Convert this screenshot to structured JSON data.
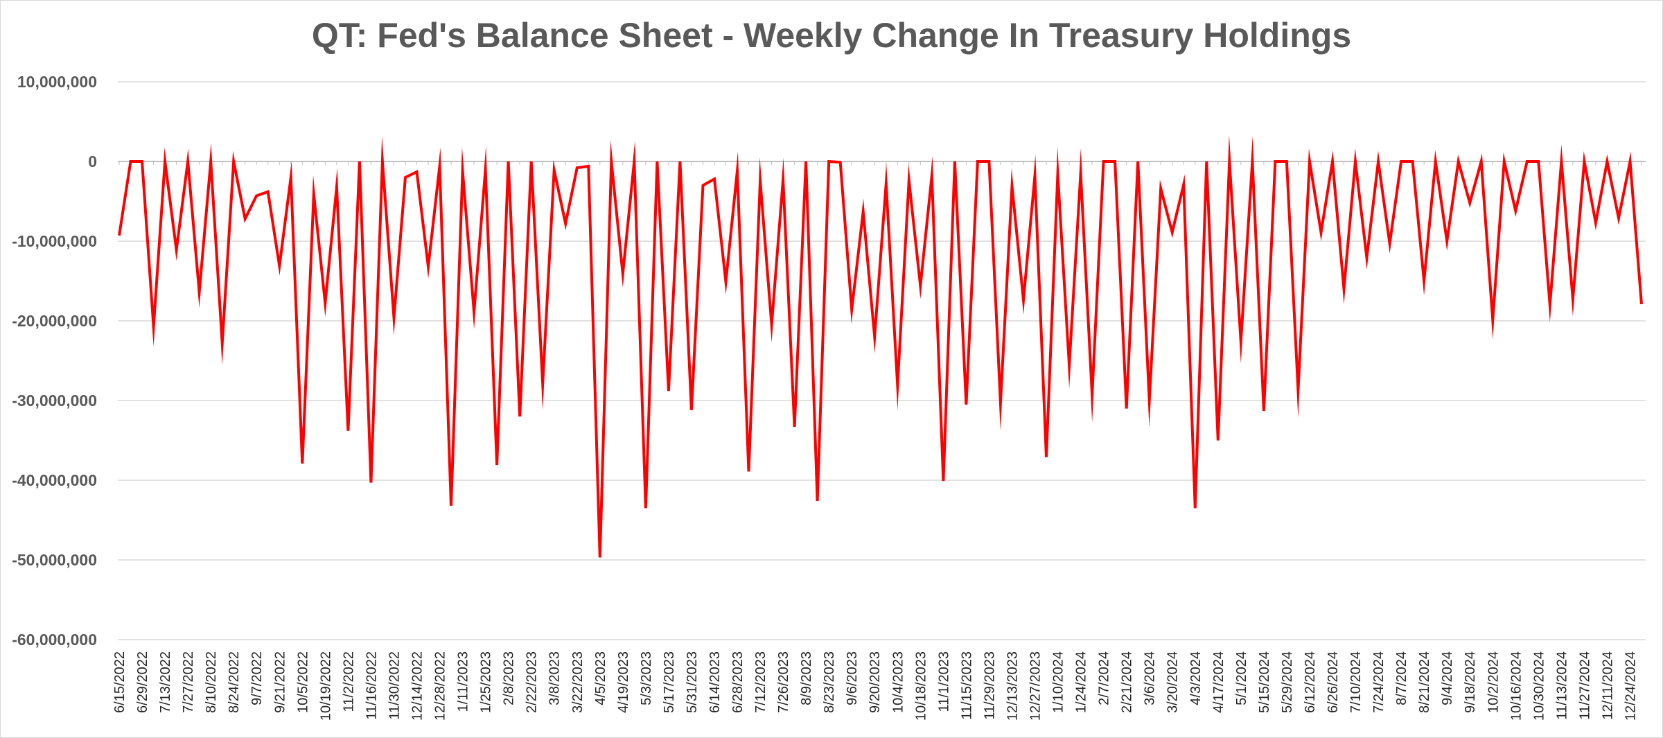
{
  "chart_data": {
    "type": "line",
    "title": "QT: Fed's Balance Sheet - Weekly Change In Treasury Holdings",
    "xlabel": "",
    "ylabel": "",
    "ylim": [
      -60000000,
      10000000
    ],
    "y_ticks": [
      "10,000,000",
      "0",
      "-10,000,000",
      "-20,000,000",
      "-30,000,000",
      "-40,000,000",
      "-50,000,000",
      "-60,000,000"
    ],
    "grid": true,
    "legend": "none",
    "series_color": "#ff0000",
    "x_tick_labels": [
      "6/15/2022",
      "6/29/2022",
      "7/13/2022",
      "7/27/2022",
      "8/10/2022",
      "8/24/2022",
      "9/7/2022",
      "9/21/2022",
      "10/5/2022",
      "10/19/2022",
      "11/2/2022",
      "11/16/2022",
      "11/30/2022",
      "12/14/2022",
      "12/28/2022",
      "1/11/2023",
      "1/25/2023",
      "2/8/2023",
      "2/22/2023",
      "3/8/2023",
      "3/22/2023",
      "4/5/2023",
      "4/19/2023",
      "5/3/2023",
      "5/17/2023",
      "5/31/2023",
      "6/14/2023",
      "6/28/2023",
      "7/12/2023",
      "7/26/2023",
      "8/9/2023",
      "8/23/2023",
      "9/6/2023",
      "9/20/2023",
      "10/4/2023",
      "10/18/2023",
      "11/1/2023",
      "11/15/2023",
      "11/29/2023",
      "12/13/2023",
      "12/27/2023",
      "1/10/2024",
      "1/24/2024",
      "2/7/2024",
      "2/21/2024",
      "3/6/2024",
      "3/20/2024",
      "4/3/2024",
      "4/17/2024",
      "5/1/2024",
      "5/15/2024",
      "5/29/2024",
      "6/12/2024",
      "6/26/2024",
      "7/10/2024",
      "7/24/2024",
      "8/7/2024",
      "8/21/2024",
      "9/4/2024",
      "9/18/2024",
      "10/2/2024",
      "10/16/2024",
      "10/30/2024",
      "11/13/2024",
      "11/27/2024",
      "12/11/2024",
      "12/24/2024"
    ],
    "x": [
      "6/15/2022",
      "6/22/2022",
      "6/29/2022",
      "7/6/2022",
      "7/13/2022",
      "7/20/2022",
      "7/27/2022",
      "8/3/2022",
      "8/10/2022",
      "8/17/2022",
      "8/24/2022",
      "8/31/2022",
      "9/7/2022",
      "9/14/2022",
      "9/21/2022",
      "9/28/2022",
      "10/5/2022",
      "10/12/2022",
      "10/19/2022",
      "10/26/2022",
      "11/2/2022",
      "11/9/2022",
      "11/16/2022",
      "11/23/2022",
      "11/30/2022",
      "12/7/2022",
      "12/14/2022",
      "12/21/2022",
      "12/28/2022",
      "1/4/2023",
      "1/11/2023",
      "1/18/2023",
      "1/25/2023",
      "2/1/2023",
      "2/8/2023",
      "2/15/2023",
      "2/22/2023",
      "3/1/2023",
      "3/8/2023",
      "3/15/2023",
      "3/22/2023",
      "3/29/2023",
      "4/5/2023",
      "4/12/2023",
      "4/19/2023",
      "4/26/2023",
      "5/3/2023",
      "5/10/2023",
      "5/17/2023",
      "5/24/2023",
      "5/31/2023",
      "6/7/2023",
      "6/14/2023",
      "6/21/2023",
      "6/28/2023",
      "7/5/2023",
      "7/12/2023",
      "7/19/2023",
      "7/26/2023",
      "8/2/2023",
      "8/9/2023",
      "8/16/2023",
      "8/23/2023",
      "8/30/2023",
      "9/6/2023",
      "9/13/2023",
      "9/20/2023",
      "9/27/2023",
      "10/4/2023",
      "10/11/2023",
      "10/18/2023",
      "10/25/2023",
      "11/1/2023",
      "11/8/2023",
      "11/15/2023",
      "11/22/2023",
      "11/29/2023",
      "12/6/2023",
      "12/13/2023",
      "12/20/2023",
      "12/27/2023",
      "1/3/2024",
      "1/10/2024",
      "1/17/2024",
      "1/24/2024",
      "1/31/2024",
      "2/7/2024",
      "2/14/2024",
      "2/21/2024",
      "2/28/2024",
      "3/6/2024",
      "3/13/2024",
      "3/20/2024",
      "3/27/2024",
      "4/3/2024",
      "4/10/2024",
      "4/17/2024",
      "4/24/2024",
      "5/1/2024",
      "5/8/2024",
      "5/15/2024",
      "5/22/2024",
      "5/29/2024",
      "6/5/2024",
      "6/12/2024",
      "6/19/2024",
      "6/26/2024",
      "7/3/2024",
      "7/10/2024",
      "7/17/2024",
      "7/24/2024",
      "7/31/2024",
      "8/7/2024",
      "8/14/2024",
      "8/21/2024",
      "8/28/2024",
      "9/4/2024",
      "9/11/2024",
      "9/18/2024",
      "9/25/2024",
      "10/2/2024",
      "10/9/2024",
      "10/16/2024",
      "10/23/2024",
      "10/30/2024",
      "11/6/2024",
      "11/13/2024",
      "11/20/2024",
      "11/27/2024",
      "12/4/2024",
      "12/11/2024",
      "12/18/2024",
      "12/24/2024",
      "12/31/2024"
    ],
    "values": [
      -9300000,
      0,
      0,
      -20700000,
      0,
      -11100000,
      0,
      -16400000,
      0,
      -22800000,
      0,
      -7200000,
      -4300000,
      -3800000,
      -13100000,
      -2000000,
      -37900000,
      -4100000,
      -17800000,
      -3200000,
      -33800000,
      0,
      -40300000,
      0,
      -19600000,
      -2000000,
      -1300000,
      -13200000,
      -600000,
      -43200000,
      -1200000,
      -18900000,
      -1000000,
      -38100000,
      0,
      -32000000,
      0,
      -27900000,
      -1100000,
      -7800000,
      -800000,
      -600000,
      -49700000,
      0,
      -14100000,
      0,
      -43500000,
      0,
      -28800000,
      0,
      -31200000,
      -3000000,
      -2200000,
      -15100000,
      -1200000,
      -38900000,
      -2400000,
      -20500000,
      -2300000,
      -33300000,
      0,
      -42600000,
      0,
      -100000,
      -18600000,
      -6300000,
      -22000000,
      -2800000,
      -28100000,
      -2400000,
      -15600000,
      -1800000,
      -40100000,
      0,
      -30500000,
      0,
      0,
      -30300000,
      -3100000,
      -17400000,
      -1800000,
      -37100000,
      -1600000,
      -25600000,
      -1500000,
      -29300000,
      0,
      0,
      -31000000,
      0,
      -30000000,
      -3400000,
      -8900000,
      -2900000,
      -43500000,
      0,
      -35000000,
      0,
      -22600000,
      0,
      -31300000,
      0,
      0,
      -28700000,
      0,
      -8900000,
      0,
      -16000000,
      0,
      -12100000,
      0,
      -10300000,
      0,
      0,
      -15000000,
      0,
      -10000000,
      0,
      -5200000,
      0,
      -19900000,
      0,
      -6200000,
      0,
      0,
      -18000000,
      0,
      -17300000,
      0,
      -7700000,
      0,
      -7100000,
      0,
      -17900000
    ]
  }
}
